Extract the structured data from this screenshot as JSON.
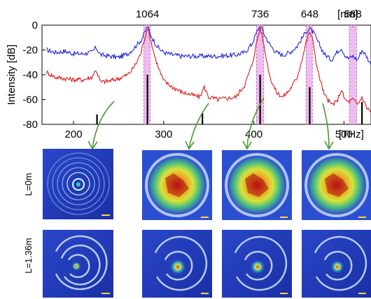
{
  "chart_data": [
    {
      "type": "line",
      "title": "",
      "xlabel": "",
      "ylabel": "Intensity [dB]",
      "x_unit": "[THz]",
      "top_axis_unit": "[nm]",
      "xlim": [
        165,
        530
      ],
      "ylim": [
        -80,
        0
      ],
      "x_ticks": [
        200,
        300,
        400,
        500
      ],
      "y_ticks": [
        0,
        -20,
        -40,
        -60,
        -80
      ],
      "top_axis_labels": [
        {
          "label": "1064",
          "x": 282
        },
        {
          "label": "736",
          "x": 407
        },
        {
          "label": "648",
          "x": 462
        },
        {
          "label": "588",
          "x": 510
        }
      ],
      "highlighted_bands": [
        {
          "from": 278,
          "to": 285
        },
        {
          "from": 403,
          "to": 411
        },
        {
          "from": 458,
          "to": 465
        },
        {
          "from": 506,
          "to": 514
        }
      ],
      "series": [
        {
          "color": "#1f26d9",
          "x": [
            170,
            180,
            190,
            200,
            210,
            220,
            225,
            230,
            240,
            250,
            260,
            265,
            270,
            275,
            279,
            282,
            285,
            290,
            295,
            300,
            310,
            320,
            340,
            360,
            380,
            390,
            398,
            402,
            405,
            407,
            409,
            412,
            418,
            425,
            432,
            440,
            448,
            454,
            458,
            462,
            466,
            470,
            478,
            486,
            492,
            497,
            501,
            505,
            510,
            515,
            520,
            525,
            530
          ],
          "values": [
            -20,
            -22,
            -21,
            -23,
            -23,
            -22,
            -18,
            -24,
            -25,
            -26,
            -23,
            -20,
            -16,
            -12,
            -6,
            -1,
            -7,
            -14,
            -19,
            -22,
            -24,
            -25,
            -25,
            -25,
            -24,
            -22,
            -15,
            -8,
            -3,
            -1,
            -3,
            -8,
            -16,
            -22,
            -24,
            -22,
            -17,
            -10,
            -5,
            -3,
            -6,
            -12,
            -23,
            -28,
            -22,
            -18,
            -24,
            -27,
            -25,
            -28,
            -20,
            -25,
            -32
          ]
        },
        {
          "color": "#d91c1c",
          "x": [
            170,
            180,
            190,
            200,
            210,
            220,
            225,
            230,
            240,
            250,
            260,
            265,
            270,
            275,
            279,
            282,
            285,
            290,
            295,
            300,
            310,
            320,
            340,
            345,
            350,
            360,
            380,
            390,
            398,
            402,
            405,
            407,
            409,
            412,
            418,
            425,
            432,
            440,
            448,
            454,
            458,
            462,
            466,
            470,
            478,
            486,
            492,
            497,
            501,
            505,
            510,
            515,
            520,
            525,
            530
          ],
          "values": [
            -38,
            -42,
            -43,
            -44,
            -44,
            -42,
            -36,
            -46,
            -45,
            -43,
            -40,
            -36,
            -30,
            -22,
            -10,
            -2,
            -10,
            -25,
            -36,
            -45,
            -50,
            -54,
            -58,
            -50,
            -58,
            -60,
            -58,
            -48,
            -32,
            -18,
            -8,
            -2,
            -8,
            -20,
            -42,
            -54,
            -58,
            -52,
            -42,
            -26,
            -14,
            -5,
            -14,
            -34,
            -56,
            -64,
            -62,
            -52,
            -60,
            -62,
            -60,
            -64,
            -58,
            -66,
            -70
          ]
        }
      ],
      "black_peaks": [
        {
          "x": 226,
          "value": -72
        },
        {
          "x": 282,
          "value": -40
        },
        {
          "x": 343,
          "value": -71
        },
        {
          "x": 407,
          "value": -40
        },
        {
          "x": 462,
          "value": -50
        },
        {
          "x": 520,
          "value": -62
        }
      ]
    },
    {
      "type": "image-grid",
      "rows": [
        {
          "label": "L=0m"
        },
        {
          "label": "L=1.36m"
        }
      ],
      "columns": 4
    }
  ]
}
